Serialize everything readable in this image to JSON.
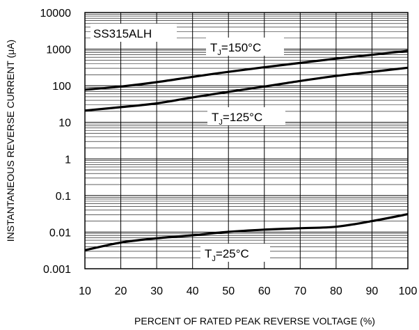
{
  "chart_data": {
    "type": "line",
    "xlabel": "PERCENT OF RATED PEAK REVERSE VOLTAGE (%)",
    "ylabel": "INSTANTANEOUS REVERSE CURRENT (μA)",
    "xlim": [
      10,
      100
    ],
    "ylim": [
      0.001,
      10000
    ],
    "yscale": "log",
    "grid": true,
    "x_ticks": [
      10,
      20,
      30,
      40,
      50,
      60,
      70,
      80,
      90,
      100
    ],
    "x_tick_labels": [
      "10",
      "20",
      "30",
      "40",
      "50",
      "60",
      "70",
      "80",
      "90",
      "100"
    ],
    "y_ticks": [
      0.001,
      0.01,
      0.1,
      1,
      10,
      100,
      1000,
      10000
    ],
    "y_tick_labels": [
      "0.001",
      "0.01",
      "0.1",
      "1",
      "10",
      "100",
      "1000",
      "10000"
    ],
    "part_label": "SS315ALH",
    "series": [
      {
        "label_main": "T",
        "label_sub": "J",
        "label_rest": "=150°C",
        "x": [
          10,
          20,
          30,
          40,
          50,
          60,
          70,
          80,
          90,
          100
        ],
        "y": [
          78,
          95,
          125,
          175,
          240,
          320,
          420,
          550,
          700,
          900
        ]
      },
      {
        "label_main": "T",
        "label_sub": "J",
        "label_rest": "=125°C",
        "x": [
          10,
          20,
          30,
          40,
          50,
          60,
          70,
          80,
          90,
          100
        ],
        "y": [
          21,
          26,
          33,
          48,
          68,
          95,
          135,
          185,
          240,
          310
        ]
      },
      {
        "label_main": "T",
        "label_sub": "J",
        "label_rest": "=25°C",
        "x": [
          10,
          20,
          30,
          40,
          50,
          60,
          70,
          80,
          90,
          100
        ],
        "y": [
          0.0032,
          0.0052,
          0.0068,
          0.0082,
          0.0102,
          0.0117,
          0.0128,
          0.014,
          0.02,
          0.031
        ]
      }
    ]
  }
}
